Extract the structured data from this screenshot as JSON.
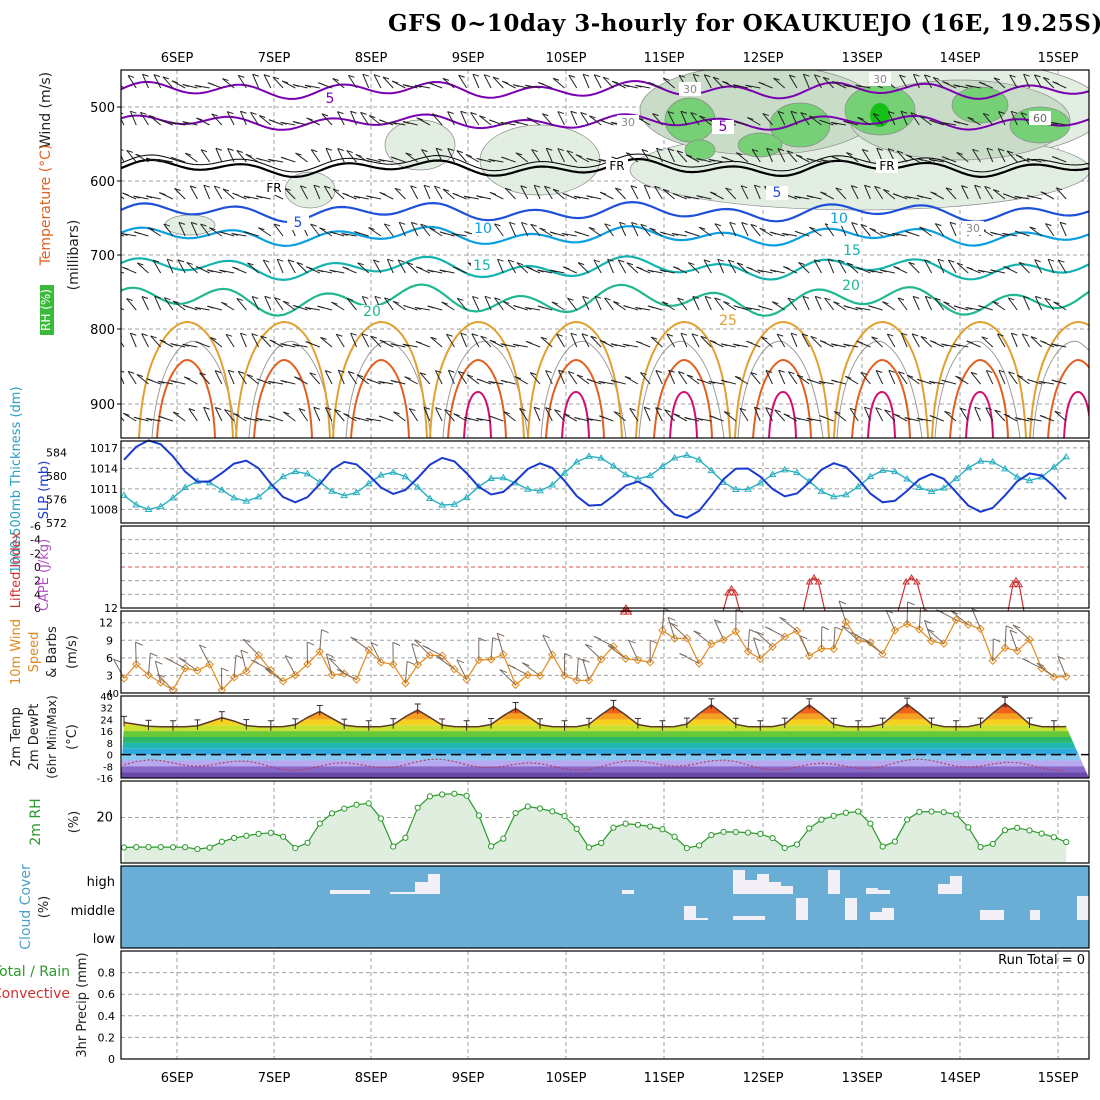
{
  "title": "GFS 0~10day 3-hourly for OKAUKUEJO (16E, 19.25S)",
  "dates": [
    "6SEP",
    "7SEP",
    "8SEP",
    "9SEP",
    "10SEP",
    "11SEP",
    "12SEP",
    "13SEP",
    "14SEP",
    "15SEP"
  ],
  "colors": {
    "wind_temp_cold": "#7a00b0",
    "freezing": "#000000",
    "temp_5": "#1e50d8",
    "temp_10": "#0aa0e0",
    "temp_15": "#13b4b0",
    "temp_20": "#20b890",
    "temp_25": "#e0a030",
    "temp_30": "#e06020",
    "temp_35": "#d01070",
    "rh_light": "#e2eee2",
    "rh_mid": "#c8dcc8",
    "rh_high": "#76d076",
    "slp": "#1a3bd0",
    "thickness": "#2ab0c0",
    "lifted": "#d03030",
    "wind10": "#e08a20",
    "rh2m": "#2a9a2a",
    "cloud_sky": "#6aaed6",
    "cloud_bar": "#f2f0f6"
  },
  "panels": {
    "upper": {
      "ylabel_wind": "Wind (m/s)",
      "ylabel_temp": "Temperature (°C)",
      "ylabel_rh": "RH (%)",
      "ylabel_mb": "(millibars)",
      "yticks": [
        "500",
        "600",
        "700",
        "800",
        "900"
      ],
      "contour_labels": {
        "w5": "5",
        "fr": "FR",
        "t5": "5",
        "t10": "10",
        "t15": "15",
        "t20": "20",
        "t25": "25",
        "rh30": "30",
        "rh60": "60"
      }
    },
    "slp": {
      "ylabel_thick": "1000-500mb Thickness (dm)",
      "ylabel_slp": "SLP (mb)",
      "yticks_left": [
        "584",
        "580",
        "576",
        "572"
      ],
      "yticks_right": [
        "1017",
        "1014",
        "1011",
        "1008"
      ]
    },
    "lifted": {
      "ylabel_li": "Lifted Index",
      "ylabel_cape": "CAPE (J/kg)",
      "yticks": [
        "-6",
        "-4",
        "-2",
        "0",
        "2",
        "4",
        "6"
      ],
      "cape_tick": "12"
    },
    "wind10": {
      "ylabel_a": "10m Wind",
      "ylabel_b": "Speed",
      "ylabel_c": "& Barbs",
      "ylabel_d": "(m/s)",
      "yticks": [
        "12",
        "9",
        "6",
        "3"
      ],
      "top_tick": "40"
    },
    "temp2m": {
      "ylabel_a": "2m Temp",
      "ylabel_b": "2m DewPt",
      "ylabel_c": "(6hr Min/Max)",
      "ylabel_d": "(°C)",
      "yticks": [
        "40",
        "32",
        "24",
        "16",
        "8",
        "0",
        "-8",
        "-16"
      ]
    },
    "rh2m": {
      "ylabel_a": "2m RH",
      "ylabel_b": "(%)",
      "yticks": [
        "20"
      ]
    },
    "cloud": {
      "ylabel_a": "Cloud Cover",
      "ylabel_b": "(%)",
      "levels": [
        "high",
        "middle",
        "low"
      ]
    },
    "precip": {
      "ylabel_total": "Total / Rain",
      "ylabel_conv": "Convective",
      "ylabel_precip": "3hr Precip (mm)",
      "yticks": [
        "0.8",
        "0.6",
        "0.4",
        "0.2",
        "0"
      ],
      "run_total": "Run Total = 0"
    }
  },
  "chart_data": {
    "type": "line",
    "x": [
      "6SEP",
      "7SEP",
      "8SEP",
      "9SEP",
      "10SEP",
      "11SEP",
      "12SEP",
      "13SEP",
      "14SEP",
      "15SEP"
    ],
    "series": [
      {
        "name": "SLP (mb)",
        "values": [
          1015.5,
          1011.3,
          1012.8,
          1013.0,
          1011.8,
          1008.5,
          1012.6,
          1012.0,
          1010.0,
          1011.0
        ]
      },
      {
        "name": "1000-500mb Thickness (dm)",
        "values": [
          576.5,
          578.5,
          579.0,
          576.5,
          581.0,
          582.0,
          579.0,
          578.5,
          580.0,
          582.0
        ]
      },
      {
        "name": "2m Temp",
        "values": [
          22,
          29,
          30,
          31,
          32,
          34,
          34,
          34,
          35,
          35
        ]
      },
      {
        "name": "2m DewPt",
        "values": [
          -8,
          -6,
          -5,
          -5,
          -6,
          -7,
          -7,
          -7,
          -4,
          -10
        ]
      },
      {
        "name": "2m RH",
        "values": [
          6,
          13,
          27,
          30,
          20,
          14,
          12,
          23,
          21,
          10
        ]
      },
      {
        "name": "10m Wind",
        "values": [
          2.5,
          4,
          4.5,
          5,
          3,
          8.5,
          8,
          9,
          11,
          4
        ]
      },
      {
        "name": "Lifted Index",
        "values": [
          null,
          null,
          null,
          null,
          null,
          5.5,
          3.5,
          1.5,
          1.5,
          2
        ]
      },
      {
        "name": "3hr Precip (mm)",
        "values": [
          0,
          0,
          0,
          0,
          0,
          0,
          0,
          0,
          0,
          0
        ]
      }
    ],
    "ylim": {
      "slp": [
        1006,
        1018
      ],
      "thickness": [
        572,
        586
      ],
      "temp": [
        -16,
        40
      ],
      "rh": [
        0,
        36
      ],
      "wind": [
        0,
        14
      ],
      "lifted": [
        -6,
        6
      ],
      "precip": [
        0,
        1
      ]
    }
  }
}
